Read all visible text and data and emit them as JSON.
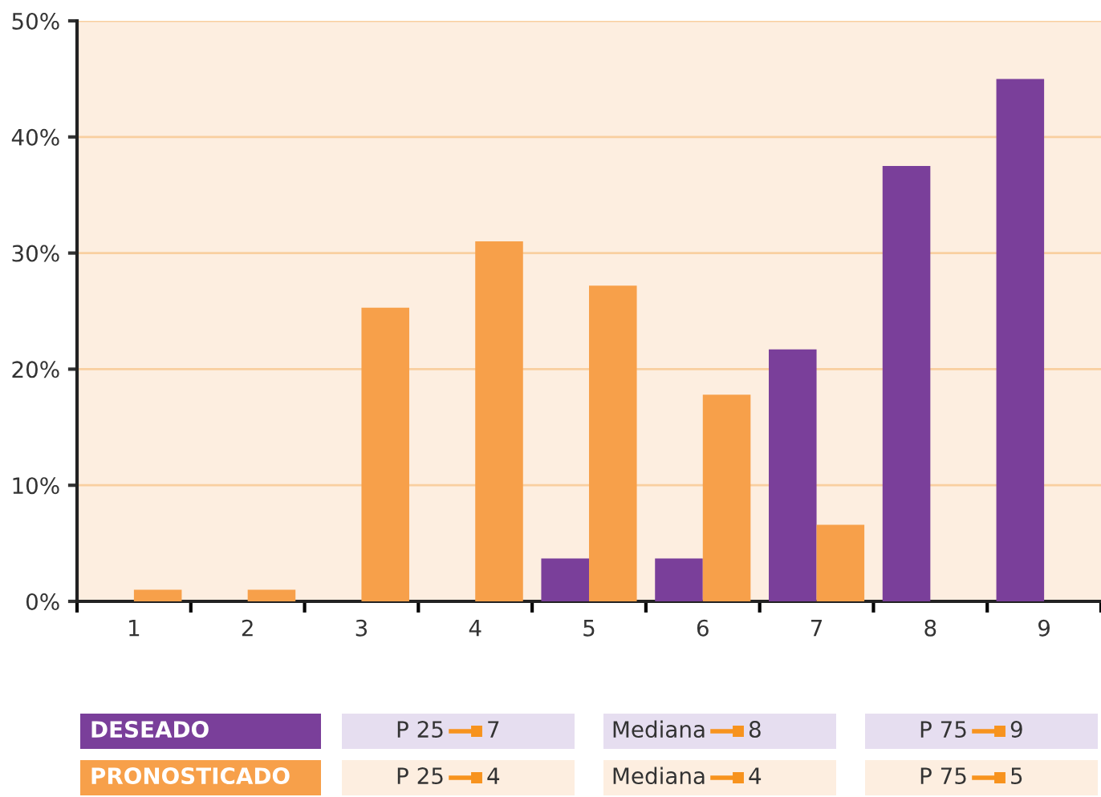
{
  "chart_data": {
    "type": "bar",
    "categories": [
      "1",
      "2",
      "3",
      "4",
      "5",
      "6",
      "7",
      "8",
      "9"
    ],
    "series": [
      {
        "name": "DESEADO",
        "color": "#7a3f9a",
        "values": [
          0,
          0,
          0,
          0,
          3.7,
          3.7,
          21.7,
          37.5,
          45
        ]
      },
      {
        "name": "PRONOSTICADO",
        "color": "#f7a04a",
        "values": [
          1,
          1,
          25.3,
          31,
          27.2,
          17.8,
          6.6,
          0,
          0
        ]
      }
    ],
    "ylim": [
      0,
      50
    ],
    "yticks": [
      {
        "value": 0,
        "label": "0%"
      },
      {
        "value": 10,
        "label": "10%"
      },
      {
        "value": 20,
        "label": "20%"
      },
      {
        "value": 30,
        "label": "30%"
      },
      {
        "value": 40,
        "label": "40%"
      },
      {
        "value": 50,
        "label": "50%"
      }
    ],
    "grid": "y",
    "legend": "bottom",
    "annotations": [
      "P 25",
      "7",
      "Mediana",
      "8",
      "P 75",
      "9",
      "P 25",
      "4",
      "Mediana",
      "4",
      "P 75",
      "5"
    ]
  }
}
